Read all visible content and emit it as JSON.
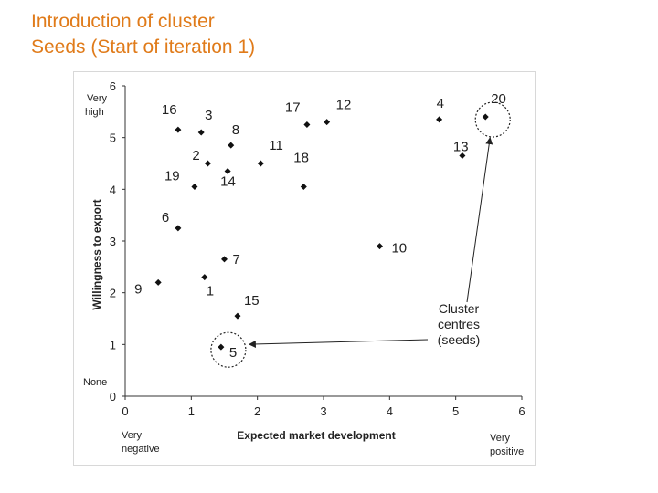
{
  "title": {
    "line1": "Introduction of cluster",
    "line2": "Seeds (Start of iteration 1)",
    "color": "#e07b1a"
  },
  "chart_data": {
    "type": "scatter",
    "title": "",
    "xlabel": "Expected market development",
    "ylabel": "Willingness to export",
    "xlim": [
      0,
      6
    ],
    "ylim": [
      0,
      6
    ],
    "xticks": [
      0,
      1,
      2,
      3,
      4,
      5,
      6
    ],
    "yticks": [
      0,
      1,
      2,
      3,
      4,
      5,
      6
    ],
    "grid": false,
    "y_end_labels": {
      "top": "Very high",
      "bottom": "None"
    },
    "x_end_labels": {
      "left": "Very negative",
      "right": "Very positive"
    },
    "points": [
      {
        "label": "1",
        "x": 1.2,
        "y": 2.3
      },
      {
        "label": "2",
        "x": 1.25,
        "y": 4.5
      },
      {
        "label": "3",
        "x": 1.15,
        "y": 5.1
      },
      {
        "label": "4",
        "x": 4.75,
        "y": 5.35
      },
      {
        "label": "5",
        "x": 1.45,
        "y": 0.95
      },
      {
        "label": "6",
        "x": 0.8,
        "y": 3.25
      },
      {
        "label": "7",
        "x": 1.5,
        "y": 2.65
      },
      {
        "label": "8",
        "x": 1.6,
        "y": 4.85
      },
      {
        "label": "9",
        "x": 0.5,
        "y": 2.2
      },
      {
        "label": "10",
        "x": 3.85,
        "y": 2.9
      },
      {
        "label": "11",
        "x": 2.05,
        "y": 4.5
      },
      {
        "label": "12",
        "x": 3.05,
        "y": 5.3
      },
      {
        "label": "13",
        "x": 5.1,
        "y": 4.65
      },
      {
        "label": "14",
        "x": 1.55,
        "y": 4.35
      },
      {
        "label": "15",
        "x": 1.7,
        "y": 1.55
      },
      {
        "label": "16",
        "x": 0.8,
        "y": 5.15
      },
      {
        "label": "17",
        "x": 2.75,
        "y": 5.25
      },
      {
        "label": "18",
        "x": 2.7,
        "y": 4.05
      },
      {
        "label": "19",
        "x": 1.05,
        "y": 4.05
      },
      {
        "label": "20",
        "x": 5.45,
        "y": 5.4
      }
    ],
    "seeds": [
      "5",
      "20"
    ],
    "annotation": "Cluster centres (seeds)"
  }
}
